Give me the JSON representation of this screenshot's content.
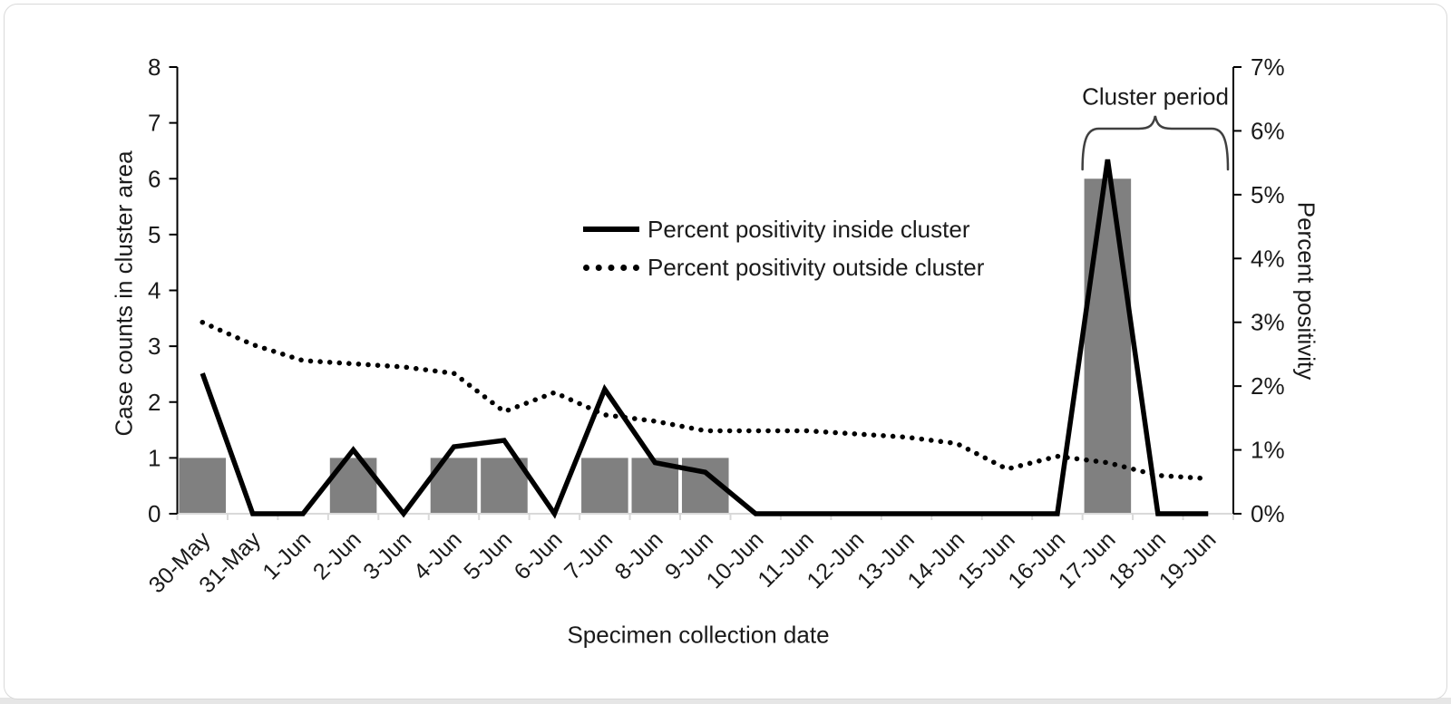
{
  "figure": {
    "annotation": {
      "label": "Cluster period",
      "from_category": "17-Jun",
      "to_category": "19-Jun"
    },
    "colors": {
      "bar": "#808080",
      "line": "#000000",
      "category_axis": "#d9d9d9",
      "value_axis": "#000000",
      "text": "#1a1a1a",
      "brace": "#404040"
    }
  },
  "chart_data": {
    "type": "bar",
    "subtype": "combo-bar-line-dual-axis",
    "title": "",
    "categories": [
      "30-May",
      "31-May",
      "1-Jun",
      "2-Jun",
      "3-Jun",
      "4-Jun",
      "5-Jun",
      "6-Jun",
      "7-Jun",
      "8-Jun",
      "9-Jun",
      "10-Jun",
      "11-Jun",
      "12-Jun",
      "13-Jun",
      "14-Jun",
      "15-Jun",
      "16-Jun",
      "17-Jun",
      "18-Jun",
      "19-Jun"
    ],
    "bar_series": {
      "name": "Case counts in cluster area",
      "axis": "left",
      "values": [
        1,
        0,
        0,
        1,
        0,
        1,
        1,
        0,
        1,
        1,
        1,
        0,
        0,
        0,
        0,
        0,
        0,
        0,
        6,
        0,
        0
      ]
    },
    "series": [
      {
        "name": "Percent positivity inside cluster",
        "style": "solid",
        "axis": "right",
        "values_percent": [
          2.2,
          0,
          0,
          1.0,
          0,
          1.05,
          1.15,
          0,
          1.95,
          0.8,
          0.65,
          0,
          0,
          0,
          0,
          0,
          0,
          0,
          5.55,
          0,
          0
        ]
      },
      {
        "name": "Percent positivity outside cluster",
        "style": "dotted",
        "axis": "right",
        "values_percent": [
          3.0,
          2.65,
          2.4,
          2.35,
          2.3,
          2.2,
          1.6,
          1.9,
          1.55,
          1.45,
          1.3,
          1.3,
          1.3,
          1.25,
          1.2,
          1.1,
          0.7,
          0.9,
          0.8,
          0.6,
          0.55
        ]
      }
    ],
    "left_axis": {
      "title": "Case counts in cluster area",
      "min": 0,
      "max": 8,
      "step": 1
    },
    "right_axis": {
      "title": "Percent positivity",
      "min": 0,
      "max": 7,
      "step": 1,
      "suffix": "%"
    },
    "x_axis": {
      "title": "Specimen collection date"
    },
    "legend": {
      "position": "center",
      "entries": [
        "Percent positivity inside cluster",
        "Percent positivity outside cluster"
      ]
    },
    "grid": false
  }
}
